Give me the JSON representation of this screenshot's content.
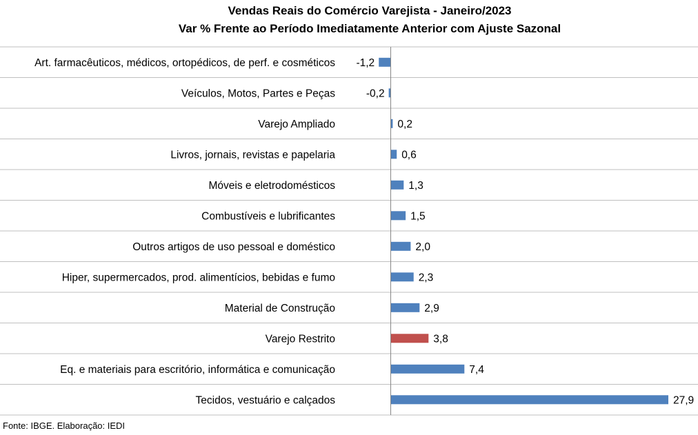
{
  "chart_data": {
    "type": "bar",
    "orientation": "horizontal",
    "title": "Vendas Reais do Comércio Varejista - Janeiro/2023",
    "subtitle": "Var % Frente ao Período Imediatamente Anterior com Ajuste Sazonal",
    "categories": [
      "Art. farmacêuticos, médicos, ortopédicos, de perf. e cosméticos",
      "Veículos, Motos, Partes e Peças",
      "Varejo Ampliado",
      "Livros, jornais, revistas e papelaria",
      "Móveis e eletrodomésticos",
      "Combustíveis e lubrificantes",
      "Outros artigos de uso pessoal e doméstico",
      "Hiper, supermercados, prod. alimentícios, bebidas e fumo",
      "Material de Construção",
      "Varejo Restrito",
      "Eq. e materiais para escritório, informática e comunicação",
      "Tecidos, vestuário e calçados"
    ],
    "values": [
      -1.2,
      -0.2,
      0.2,
      0.6,
      1.3,
      1.5,
      2.0,
      2.3,
      2.9,
      3.8,
      7.4,
      27.9
    ],
    "value_labels": [
      "-1,2",
      "-0,2",
      "0,2",
      "0,6",
      "1,3",
      "1,5",
      "2,0",
      "2,3",
      "2,9",
      "3,8",
      "7,4",
      "27,9"
    ],
    "highlight": "Varejo Restrito",
    "colors": {
      "default": "#4f81bd",
      "highlight": "#c0504d",
      "axis": "#868686"
    },
    "xlim": [
      -1.2,
      30.5
    ],
    "grid": false,
    "legend": "none"
  },
  "source": "Fonte: IBGE. Elaboração: IEDI"
}
